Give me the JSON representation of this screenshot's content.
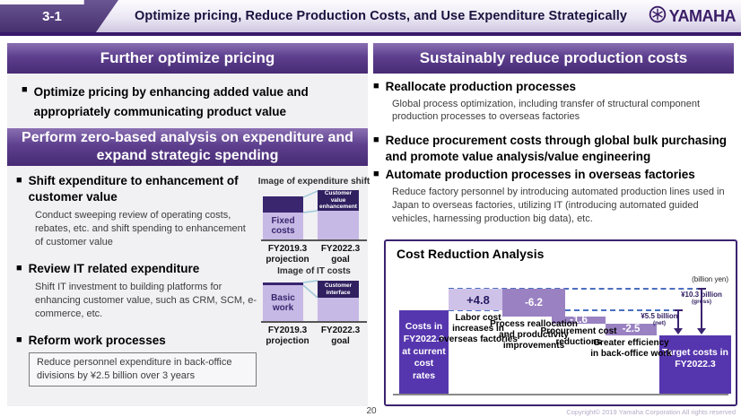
{
  "header": {
    "slide_number": "3-1",
    "title": "Optimize pricing, Reduce Production Costs, and Use Expenditure Strategically",
    "logo_text": "YAMAHA"
  },
  "colors": {
    "dark_purple": "#38196b",
    "section_header_purple": "#5d3f8e",
    "waterfall_total_bar": "#5636ae",
    "waterfall_minus_bar": "#9a82c2",
    "waterfall_plus_bar": "#cfc2e9",
    "dashed_line_blue": "#4a6fbe",
    "panel_gray": "#f1f0f3"
  },
  "left_column": {
    "pricing_header": "Further optimize pricing",
    "pricing_bullet": "Optimize pricing by enhancing added value and appropriately communicating product value",
    "zero_header": "Perform zero-based analysis on expenditure and expand strategic spending",
    "bullet1_title": "Shift expenditure to enhancement of customer value",
    "bullet1_body": "Conduct sweeping review of operating costs, rebates, etc. and shift spending to enhancement of customer value",
    "bullet2_title": "Review IT related expenditure",
    "bullet2_body": "Shift IT investment to building platforms for enhancing customer value, such as CRM, SCM, e-commerce, etc.",
    "bullet3_title": "Reform work processes",
    "reform_box": "Reduce personnel expenditure in back-office divisions by ¥2.5 billion over 3 years"
  },
  "mini_charts": {
    "expenditure": {
      "title": "Image of expenditure shift",
      "left_bar_label": "Fixed costs",
      "right_bar_top_label": "Customer value enhancement",
      "x_left": "FY2019.3 projection",
      "x_right": "FY2022.3 goal"
    },
    "it": {
      "title": "Image of IT costs",
      "left_bar_label": "Basic work",
      "right_bar_top_label": "Customer interface",
      "x_left": "FY2019.3 projection",
      "x_right": "FY2022.3 goal"
    }
  },
  "right_column": {
    "header": "Sustainably reduce production costs",
    "bullet1_title": "Reallocate production processes",
    "bullet1_body": "Global process optimization, including transfer of structural component production processes to overseas factories",
    "bullet2_title": "Reduce procurement costs through global bulk purchasing and promote value analysis/value engineering",
    "bullet3_title": "Automate production processes in overseas factories",
    "bullet3_body": "Reduce factory personnel by introducing automated production lines used in Japan to overseas factories, utilizing IT (introducing automated guided vehicles, harnessing production big data), etc."
  },
  "chart_data": {
    "type": "waterfall",
    "title": "Cost Reduction Analysis",
    "unit_label": "(billion yen)",
    "bars": [
      {
        "label": "Costs in FY2022.3 at current cost rates",
        "role": "total_start"
      },
      {
        "label": "Labor cost increases in overseas factories",
        "value": 4.8,
        "display": "+4.8"
      },
      {
        "label": "Process reallocation and productivity improvements",
        "value": -6.2,
        "display": "-6.2"
      },
      {
        "label": "Procurement cost reductions",
        "value": -1.6,
        "display": "-1.6"
      },
      {
        "label": "Greater efficiency in back-office work",
        "value": -2.5,
        "display": "-2.5"
      },
      {
        "label": "Target costs in FY2022.3",
        "role": "total_end"
      }
    ],
    "annotations": [
      {
        "text": "¥10.3 billion",
        "qualifier": "(gross)",
        "value": 10.3
      },
      {
        "text": "¥5.5 billion",
        "qualifier": "(net)",
        "value": 5.5
      }
    ]
  },
  "footer": {
    "page_number": "20",
    "copyright": "Copyright©  2019 Yamaha Corporation All rights reserved"
  }
}
